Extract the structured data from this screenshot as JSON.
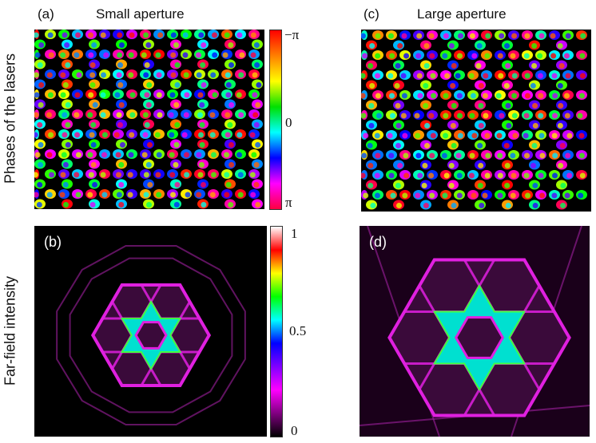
{
  "titles": {
    "a_letter": "(a)",
    "a_title": "Small aperture",
    "c_letter": "(c)",
    "c_title": "Large aperture"
  },
  "ylabels": {
    "top": "Phases of the lasers",
    "bottom": "Far-field intensity"
  },
  "panel_letters": {
    "b": "(b)",
    "d": "(d)"
  },
  "phase_colorbar": {
    "ticks": [
      "−π",
      "0",
      "π"
    ],
    "colors": [
      "#ff0000",
      "#ff8000",
      "#ffff00",
      "#00e000",
      "#00ffff",
      "#0000ff",
      "#ff00ff",
      "#ff0040"
    ]
  },
  "intensity_colorbar": {
    "ticks": [
      "1",
      "0.5",
      "0"
    ],
    "colors": [
      "#000000",
      "#800080",
      "#ff00ff",
      "#8000ff",
      "#0000ff",
      "#00ffff",
      "#00ff00",
      "#ffff00",
      "#ff0000",
      "#ffffff"
    ]
  },
  "colors": {
    "lines": "#e020e0",
    "star": "#00e0d0",
    "star_edge": "#40ff40"
  }
}
